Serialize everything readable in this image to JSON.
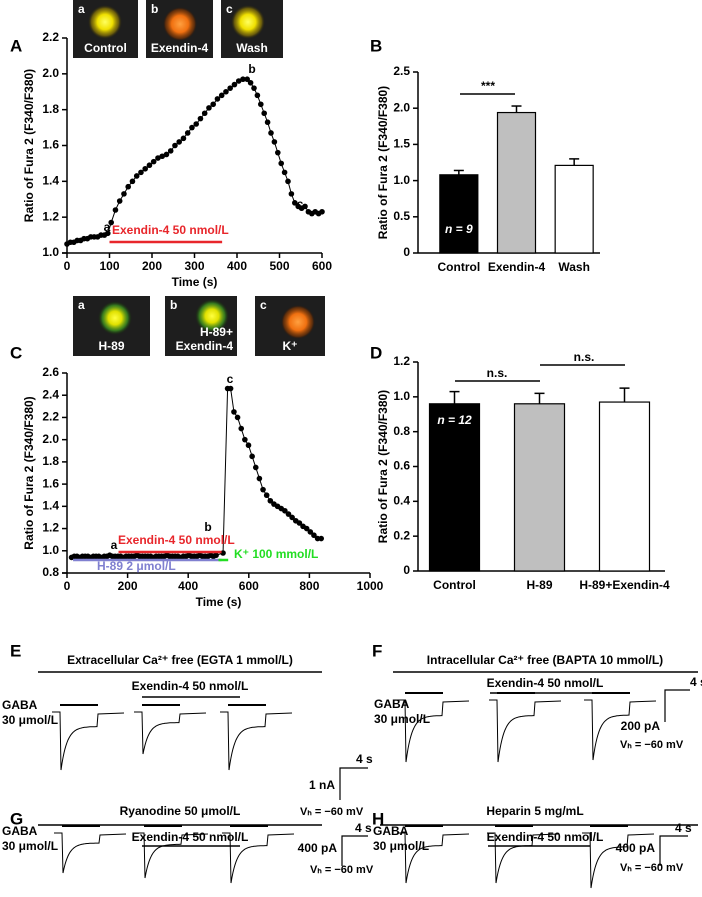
{
  "chart_data": [
    {
      "type": "line",
      "panel": "A",
      "images": [
        {
          "letter": "a",
          "label": "Control"
        },
        {
          "letter": "b",
          "label": "Exendin-4"
        },
        {
          "letter": "c",
          "label": "Wash"
        }
      ],
      "xlabel": "Time (s)",
      "ylabel": "Ratio of Fura 2 (F340/F380)",
      "x": [
        0,
        8,
        16,
        24,
        32,
        40,
        48,
        56,
        64,
        72,
        80,
        88,
        96,
        104,
        114,
        124,
        134,
        144,
        154,
        164,
        174,
        184,
        194,
        204,
        214,
        224,
        234,
        244,
        254,
        264,
        274,
        284,
        294,
        304,
        314,
        324,
        334,
        344,
        354,
        364,
        374,
        384,
        394,
        404,
        414,
        424,
        432,
        440,
        448,
        456,
        464,
        472,
        480,
        488,
        496,
        504,
        512,
        520,
        528,
        536,
        544,
        552,
        560,
        568,
        576,
        584,
        592,
        600
      ],
      "series": [
        {
          "color": "#000000",
          "values": [
            1.05,
            1.06,
            1.06,
            1.07,
            1.07,
            1.08,
            1.08,
            1.09,
            1.09,
            1.09,
            1.1,
            1.1,
            1.11,
            1.17,
            1.24,
            1.29,
            1.33,
            1.37,
            1.4,
            1.43,
            1.45,
            1.47,
            1.49,
            1.51,
            1.53,
            1.54,
            1.55,
            1.57,
            1.6,
            1.62,
            1.64,
            1.67,
            1.7,
            1.72,
            1.75,
            1.78,
            1.81,
            1.83,
            1.86,
            1.88,
            1.9,
            1.92,
            1.94,
            1.96,
            1.97,
            1.97,
            1.95,
            1.92,
            1.88,
            1.83,
            1.78,
            1.73,
            1.67,
            1.62,
            1.56,
            1.5,
            1.45,
            1.4,
            1.33,
            1.28,
            1.26,
            1.25,
            1.26,
            1.23,
            1.22,
            1.23,
            1.22,
            1.23
          ]
        }
      ],
      "annotations": [
        "a",
        "b",
        "c"
      ],
      "protocols": [
        {
          "label": "Exendin-4   50 nmol/L",
          "start": 100,
          "end": 365,
          "color": "#e8262b"
        }
      ],
      "xlim": [
        0,
        600
      ],
      "xticks": [
        0,
        100,
        200,
        300,
        400,
        500,
        600
      ],
      "ylim": [
        1.0,
        2.2
      ],
      "yticks": [
        {
          "value": 1.0,
          "label": "1.0"
        },
        1.2,
        1.4,
        1.6,
        1.8,
        {
          "value": 2.0,
          "label": "2.0"
        },
        2.2
      ]
    },
    {
      "type": "bar",
      "panel": "B",
      "ylabel": "Ratio of Fura 2 (F340/F380)",
      "categories": [
        "Control",
        "Exendin-4",
        "Wash"
      ],
      "values": [
        1.08,
        1.94,
        1.21
      ],
      "errors": [
        0.06,
        0.09,
        0.09
      ],
      "colors": [
        "#000000",
        "#bfbfbf",
        "#ffffff"
      ],
      "n_label": "n = 9",
      "annotations": [
        "***"
      ],
      "ylim": [
        0,
        2.5
      ],
      "yticks": [
        0,
        0.5,
        {
          "value": 1.0,
          "label": "1.0"
        },
        1.5,
        {
          "value": 2.0,
          "label": "2.0"
        },
        2.5
      ]
    },
    {
      "type": "line",
      "panel": "C",
      "images": [
        {
          "letter": "a",
          "label": "H-89"
        },
        {
          "letter": "b",
          "label": [
            "H-89+",
            "Exendin-4"
          ]
        },
        {
          "letter": "c",
          "label": "K⁺"
        }
      ],
      "xlabel": "Time (s)",
      "ylabel": "Ratio of Fura 2 (F340/F380)",
      "x": [
        15,
        24,
        33,
        42,
        51,
        60,
        69,
        78,
        87,
        96,
        105,
        114,
        123,
        132,
        141,
        150,
        159,
        168,
        177,
        186,
        195,
        204,
        213,
        222,
        231,
        240,
        249,
        258,
        267,
        276,
        285,
        294,
        303,
        312,
        321,
        330,
        339,
        348,
        357,
        366,
        375,
        384,
        393,
        402,
        411,
        420,
        429,
        438,
        447,
        456,
        465,
        474,
        483,
        492,
        515,
        530,
        540,
        551,
        563,
        575,
        587,
        599,
        611,
        623,
        635,
        647,
        659,
        671,
        683,
        695,
        707,
        719,
        731,
        743,
        755,
        767,
        779,
        791,
        803,
        815,
        827,
        839
      ],
      "series": [
        {
          "color": "#000000",
          "values": [
            0.94,
            0.95,
            0.95,
            0.94,
            0.95,
            0.95,
            0.95,
            0.94,
            0.95,
            0.95,
            0.95,
            0.94,
            0.95,
            0.95,
            0.96,
            0.95,
            0.95,
            0.95,
            0.95,
            0.94,
            0.95,
            0.95,
            0.95,
            0.95,
            0.96,
            0.95,
            0.95,
            0.95,
            0.95,
            0.95,
            0.94,
            0.95,
            0.95,
            0.95,
            0.95,
            0.96,
            0.95,
            0.95,
            0.95,
            0.95,
            0.94,
            0.95,
            0.95,
            0.96,
            0.95,
            0.95,
            0.95,
            0.96,
            0.95,
            0.95,
            0.95,
            0.96,
            0.95,
            0.96,
            0.98,
            2.46,
            2.46,
            2.25,
            2.2,
            2.1,
            2.0,
            1.95,
            1.85,
            1.75,
            1.65,
            1.55,
            1.5,
            1.45,
            1.42,
            1.4,
            1.38,
            1.36,
            1.33,
            1.3,
            1.27,
            1.25,
            1.22,
            1.2,
            1.17,
            1.14,
            1.11,
            1.11
          ]
        }
      ],
      "annotations": [
        "a",
        "b",
        "c"
      ],
      "protocols": [
        {
          "label": "Exendin-4 50 nmol/L",
          "start": 170,
          "end": 510,
          "color": "#e8262b"
        },
        {
          "label": "H-89   2 μmol/L",
          "start": 20,
          "end": 510,
          "color": "#8080d0"
        },
        {
          "label": "K⁺ 100 mmol/L",
          "start": 500,
          "end": 532,
          "color": "#22dd22"
        }
      ],
      "xlim": [
        0,
        1000
      ],
      "xticks": [
        0,
        200,
        400,
        600,
        800,
        1000
      ],
      "ylim": [
        0.8,
        2.6
      ],
      "yticks": [
        0.8,
        {
          "value": 1.0,
          "label": "1.0"
        },
        1.2,
        1.4,
        1.6,
        1.8,
        {
          "value": 2.0,
          "label": "2.0"
        },
        2.2,
        2.4,
        2.6
      ]
    },
    {
      "type": "bar",
      "panel": "D",
      "ylabel": "Ratio of Fura 2 (F340/F380)",
      "categories": [
        "Control",
        "H-89",
        "H-89+Exendin-4"
      ],
      "values": [
        0.96,
        0.96,
        0.97
      ],
      "errors": [
        0.07,
        0.06,
        0.08
      ],
      "colors": [
        "#000000",
        "#bfbfbf",
        "#ffffff"
      ],
      "n_label": "n = 12",
      "annotations": [
        "n.s.",
        "n.s."
      ],
      "ylim": [
        0,
        1.2
      ],
      "yticks": [
        0,
        0.2,
        0.4,
        0.6,
        0.8,
        {
          "value": 1.0,
          "label": "1.0"
        },
        1.2
      ]
    }
  ],
  "recordings": [
    {
      "panel": "E",
      "condition": "Extracellular  Ca²⁺ free  (EGTA   1 mmol/L)",
      "drug": "Exendin-4  50 nmol/L",
      "agonist": [
        "GABA",
        "30 μmol/L"
      ],
      "scale_current": "1 nA",
      "scale_time": "4 s",
      "holding": "Vₕ = −60 mV"
    },
    {
      "panel": "F",
      "condition": "Intracellular  Ca²⁺ free   (BAPTA  10 mmol/L)",
      "drug": "Exendin-4  50 nmol/L",
      "agonist": [
        "GABA",
        "30 μmol/L"
      ],
      "scale_current": "200 pA",
      "scale_time": "4 s",
      "holding": "Vₕ = −60  mV"
    },
    {
      "panel": "G",
      "condition": "Ryanodine  50 μmol/L",
      "drug": "Exendin-4  50 nmol/L",
      "agonist": [
        "GABA",
        "30 μmol/L"
      ],
      "scale_current": "400 pA",
      "scale_time": "4 s",
      "holding": "Vₕ = −60  mV"
    },
    {
      "panel": "H",
      "condition": "Heparin     5 mg/mL",
      "drug": "Exendin-4  50 nmol/L",
      "agonist": [
        "GABA",
        "30 μmol/L"
      ],
      "scale_current": "400 pA",
      "scale_time": "4 s",
      "holding": "Vₕ = −60  mV"
    }
  ]
}
